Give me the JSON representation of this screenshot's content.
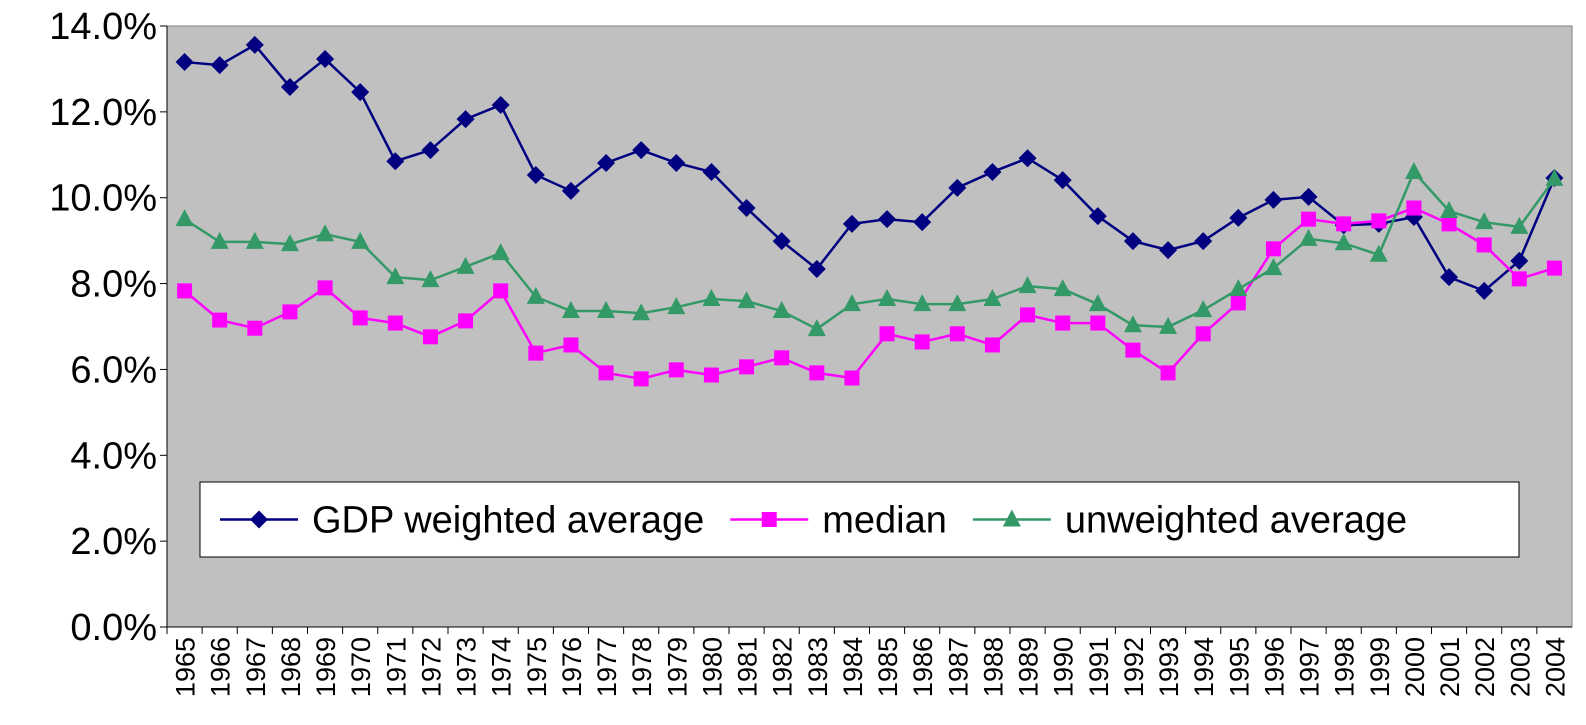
{
  "chart_data": {
    "type": "line",
    "categories": [
      "1965",
      "1966",
      "1967",
      "1968",
      "1969",
      "1970",
      "1971",
      "1972",
      "1973",
      "1974",
      "1975",
      "1976",
      "1977",
      "1978",
      "1979",
      "1980",
      "1981",
      "1982",
      "1983",
      "1984",
      "1985",
      "1986",
      "1987",
      "1988",
      "1989",
      "1990",
      "1991",
      "1992",
      "1993",
      "1994",
      "1995",
      "1996",
      "1997",
      "1998",
      "1999",
      "2000",
      "2001",
      "2002",
      "2003",
      "2004"
    ],
    "series": [
      {
        "name": "GDP weighted average",
        "color": "#000080",
        "marker": "diamond",
        "values": [
          13.16,
          13.09,
          13.56,
          12.58,
          13.23,
          12.46,
          10.85,
          11.11,
          11.83,
          12.16,
          10.53,
          10.16,
          10.81,
          11.11,
          10.81,
          10.6,
          9.76,
          8.99,
          8.34,
          9.39,
          9.5,
          9.43,
          10.23,
          10.6,
          10.92,
          10.41,
          9.57,
          8.99,
          8.78,
          8.99,
          9.53,
          9.95,
          10.02,
          9.36,
          9.39,
          9.55,
          8.15,
          7.83,
          8.53,
          10.46
        ]
      },
      {
        "name": "median",
        "color": "#ff00ff",
        "marker": "square",
        "values": [
          7.83,
          7.15,
          6.96,
          7.34,
          7.9,
          7.2,
          7.08,
          6.76,
          7.13,
          7.83,
          6.38,
          6.57,
          5.92,
          5.78,
          5.99,
          5.87,
          6.06,
          6.27,
          5.92,
          5.8,
          6.83,
          6.64,
          6.83,
          6.57,
          7.27,
          7.08,
          7.08,
          6.45,
          5.92,
          6.83,
          7.55,
          8.81,
          9.5,
          9.39,
          9.46,
          9.76,
          9.39,
          8.9,
          8.11,
          8.36
        ]
      },
      {
        "name": "unweighted average",
        "color": "#339966",
        "marker": "triangle",
        "values": [
          9.5,
          8.97,
          8.97,
          8.92,
          9.15,
          8.97,
          8.15,
          8.08,
          8.39,
          8.71,
          7.69,
          7.36,
          7.36,
          7.31,
          7.45,
          7.64,
          7.59,
          7.36,
          6.94,
          7.52,
          7.64,
          7.52,
          7.52,
          7.64,
          7.94,
          7.87,
          7.52,
          7.03,
          6.99,
          7.38,
          7.87,
          8.36,
          9.04,
          8.94,
          8.67,
          10.6,
          9.69,
          9.43,
          9.32,
          10.44
        ]
      }
    ],
    "ylim": [
      0,
      14
    ],
    "yticks": [
      {
        "value": 0,
        "label": "0.0%"
      },
      {
        "value": 2,
        "label": "2.0%"
      },
      {
        "value": 4,
        "label": "4.0%"
      },
      {
        "value": 6,
        "label": "6.0%"
      },
      {
        "value": 8,
        "label": "8.0%"
      },
      {
        "value": 10,
        "label": "10.0%"
      },
      {
        "value": 12,
        "label": "12.0%"
      },
      {
        "value": 14,
        "label": "14.0%"
      }
    ],
    "grid": false,
    "background": "#c0c0c0",
    "legend": "bottom"
  }
}
